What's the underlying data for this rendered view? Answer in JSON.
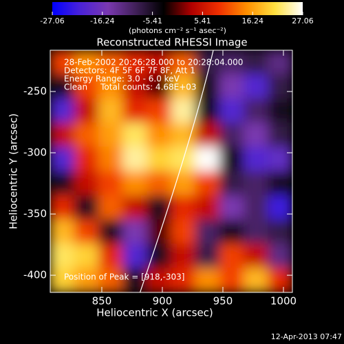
{
  "chart_data": {
    "type": "heatmap",
    "title": "Reconstructed RHESSI Image",
    "colorbar_label": "(photons cm⁻² s⁻¹ asec⁻²)",
    "zlim": [
      -27.06,
      27.06
    ],
    "zticks": [
      -27.06,
      -16.24,
      -5.41,
      5.41,
      16.24,
      27.06
    ],
    "colorscale": [
      "#0000ff",
      "#4a22d8",
      "#7a38b0",
      "#402058",
      "#000000",
      "#b00000",
      "#f03000",
      "#ff9000",
      "#ffe040",
      "#ffffff"
    ],
    "x_label": "Heliocentric X (arcsec)",
    "y_label": "Heliocentric Y (arcsec)",
    "xlim": [
      807.4,
      1007.4
    ],
    "ylim": [
      -414,
      -216.3
    ],
    "xticks": [
      850,
      900,
      950,
      1000
    ],
    "yticks": [
      -250,
      -300,
      -350,
      -400
    ],
    "z": [
      [
        10,
        15,
        12,
        8,
        5,
        12,
        -8,
        -10,
        -8,
        -12
      ],
      [
        -5,
        10,
        15,
        5,
        0,
        18,
        -5,
        -15,
        -20,
        -8
      ],
      [
        -20,
        5,
        18,
        8,
        10,
        24,
        -5,
        -20,
        -10,
        -5
      ],
      [
        5,
        12,
        16,
        22,
        15,
        18,
        5,
        -10,
        -15,
        -8
      ],
      [
        -20,
        8,
        14,
        24,
        20,
        22,
        27,
        -5,
        -20,
        -18
      ],
      [
        -5,
        5,
        10,
        15,
        12,
        16,
        10,
        -8,
        -10,
        -5
      ],
      [
        8,
        -5,
        12,
        5,
        -5,
        8,
        5,
        -15,
        -10,
        -22
      ],
      [
        18,
        10,
        -5,
        -15,
        0,
        10,
        -10,
        -5,
        -10,
        -8
      ],
      [
        22,
        20,
        8,
        -20,
        -5,
        5,
        -8,
        10,
        5,
        -12
      ],
      [
        20,
        16,
        12,
        -5,
        5,
        8,
        15,
        10,
        18,
        8
      ]
    ],
    "annotations": [
      "28-Feb-2002 20:26:28.000 to 20:28:04.000",
      "Detectors: 4F 5F 6F 7F 8F, Att 1",
      "Energy Range: 3.0 - 6.0 keV",
      "Clean     Total counts: 4.68E+03"
    ],
    "peak_label": "Position of Peak = [918,-303]",
    "footer": "12-Apr-2013 07:47"
  }
}
